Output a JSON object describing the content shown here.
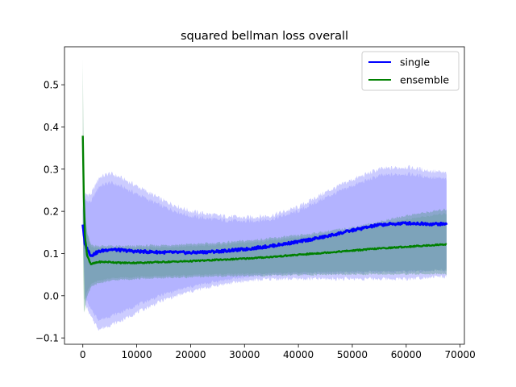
{
  "chart_data": {
    "type": "line",
    "title": "squared bellman loss overall",
    "xlabel": "",
    "ylabel": "",
    "xlim": [
      -3400,
      70800
    ],
    "ylim": [
      -0.115,
      0.59
    ],
    "x_ticks": [
      0,
      10000,
      20000,
      30000,
      40000,
      50000,
      60000,
      70000
    ],
    "x_tick_labels": [
      "0",
      "10000",
      "20000",
      "30000",
      "40000",
      "50000",
      "60000",
      "70000"
    ],
    "y_ticks": [
      -0.1,
      0.0,
      0.1,
      0.2,
      0.3,
      0.4,
      0.5
    ],
    "y_tick_labels": [
      "−0.1",
      "0.0",
      "0.1",
      "0.2",
      "0.3",
      "0.4",
      "0.5"
    ],
    "grid": false,
    "legend_position": "top-right",
    "series": [
      {
        "name": "single",
        "color": "#0000ff",
        "band_color": "#0000ff",
        "x": [
          0,
          400,
          1500,
          3000,
          5000,
          7000,
          10000,
          15000,
          20000,
          25000,
          30000,
          35000,
          40000,
          45000,
          50000,
          55000,
          60000,
          65000,
          67500
        ],
        "mean": [
          0.17,
          0.12,
          0.095,
          0.105,
          0.11,
          0.108,
          0.105,
          0.103,
          0.102,
          0.105,
          0.11,
          0.118,
          0.128,
          0.14,
          0.155,
          0.168,
          0.172,
          0.17,
          0.17
        ],
        "upper": [
          0.21,
          0.24,
          0.24,
          0.28,
          0.29,
          0.28,
          0.26,
          0.225,
          0.2,
          0.19,
          0.185,
          0.19,
          0.21,
          0.245,
          0.275,
          0.3,
          0.305,
          0.295,
          0.29
        ],
        "lower": [
          0.15,
          -0.02,
          -0.05,
          -0.08,
          -0.07,
          -0.06,
          -0.04,
          -0.01,
          0.01,
          0.025,
          0.035,
          0.04,
          0.04,
          0.04,
          0.04,
          0.04,
          0.04,
          0.045,
          0.045
        ]
      },
      {
        "name": "ensemble",
        "color": "#008000",
        "band_color": "#2e8b57",
        "x": [
          0,
          150,
          400,
          800,
          1500,
          3000,
          5000,
          7000,
          10000,
          15000,
          20000,
          25000,
          30000,
          35000,
          40000,
          45000,
          50000,
          55000,
          60000,
          65000,
          67500
        ],
        "mean": [
          0.38,
          0.25,
          0.14,
          0.095,
          0.075,
          0.08,
          0.08,
          0.078,
          0.078,
          0.08,
          0.082,
          0.085,
          0.088,
          0.092,
          0.097,
          0.102,
          0.107,
          0.112,
          0.116,
          0.12,
          0.122
        ],
        "upper": [
          0.565,
          0.32,
          0.2,
          0.15,
          0.12,
          0.118,
          0.118,
          0.117,
          0.118,
          0.12,
          0.122,
          0.125,
          0.13,
          0.136,
          0.143,
          0.152,
          0.162,
          0.175,
          0.19,
          0.2,
          0.205
        ],
        "lower": [
          0.2,
          -0.04,
          -0.03,
          0.0,
          0.02,
          0.03,
          0.035,
          0.038,
          0.04,
          0.042,
          0.044,
          0.046,
          0.047,
          0.048,
          0.049,
          0.05,
          0.05,
          0.051,
          0.051,
          0.052,
          0.052
        ]
      }
    ]
  }
}
